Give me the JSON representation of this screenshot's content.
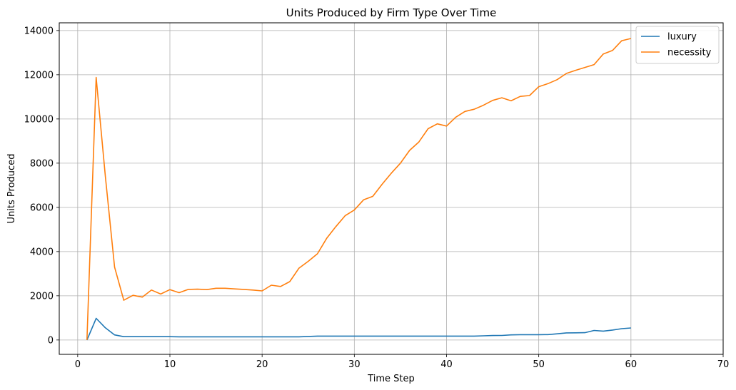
{
  "chart_data": {
    "type": "line",
    "title": "Units Produced by Firm Type Over Time",
    "xlabel": "Time Step",
    "ylabel": "Units Produced",
    "xlim": [
      -2,
      70
    ],
    "ylim": [
      -650,
      14350
    ],
    "xticks": [
      0,
      10,
      20,
      30,
      40,
      50,
      60,
      70
    ],
    "yticks": [
      0,
      2000,
      4000,
      6000,
      8000,
      10000,
      12000,
      14000
    ],
    "grid": true,
    "legend_position": "top-right",
    "colors": {
      "luxury": "#1f77b4",
      "necessity": "#ff7f0e"
    },
    "x": [
      1,
      2,
      3,
      4,
      5,
      6,
      7,
      8,
      9,
      10,
      11,
      12,
      13,
      14,
      15,
      16,
      17,
      18,
      19,
      20,
      21,
      22,
      23,
      24,
      25,
      26,
      27,
      28,
      29,
      30,
      31,
      32,
      33,
      34,
      35,
      36,
      37,
      38,
      39,
      40,
      41,
      42,
      43,
      44,
      45,
      46,
      47,
      48,
      49,
      50,
      51,
      52,
      53,
      54,
      55,
      56,
      57,
      58,
      59,
      60
    ],
    "series": [
      {
        "name": "luxury",
        "values": [
          0,
          980,
          550,
          230,
          150,
          150,
          150,
          150,
          150,
          150,
          145,
          145,
          145,
          145,
          145,
          145,
          145,
          145,
          145,
          145,
          145,
          145,
          145,
          145,
          160,
          175,
          175,
          175,
          175,
          175,
          175,
          175,
          175,
          175,
          175,
          175,
          175,
          175,
          175,
          175,
          175,
          175,
          175,
          190,
          200,
          205,
          230,
          240,
          240,
          240,
          245,
          280,
          320,
          325,
          330,
          430,
          400,
          450,
          510,
          545
        ]
      },
      {
        "name": "necessity",
        "values": [
          0,
          11880,
          7400,
          3300,
          1800,
          2020,
          1940,
          2260,
          2080,
          2280,
          2140,
          2290,
          2300,
          2280,
          2340,
          2340,
          2310,
          2290,
          2260,
          2220,
          2480,
          2420,
          2640,
          3250,
          3560,
          3900,
          4600,
          5130,
          5620,
          5880,
          6340,
          6500,
          7040,
          7540,
          8000,
          8580,
          8960,
          9560,
          9780,
          9680,
          10080,
          10340,
          10440,
          10620,
          10840,
          10960,
          10820,
          11020,
          11060,
          11460,
          11600,
          11780,
          12060,
          12200,
          12330,
          12460,
          12940,
          13100,
          13540,
          13640
        ]
      }
    ]
  }
}
